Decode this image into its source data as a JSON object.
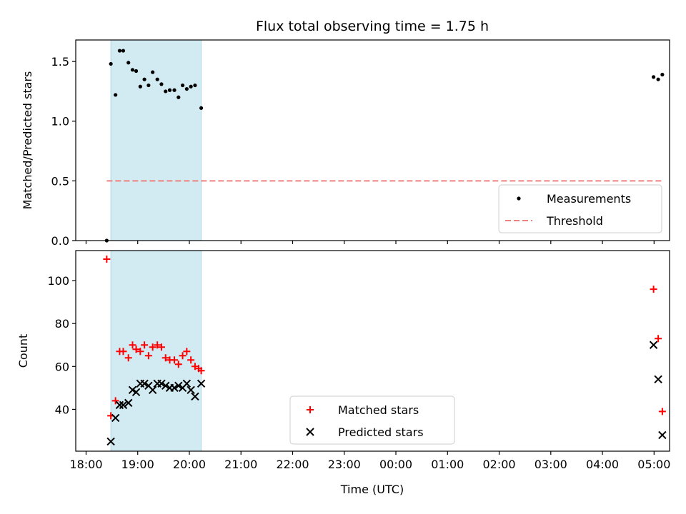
{
  "chart_data": {
    "title": "Flux total observing time = 1.75 h",
    "xlabel": "Time (UTC)",
    "x_unit": "hours after 18:00 UTC",
    "xlim": [
      -0.2,
      11.3
    ],
    "xticks": [
      0,
      1,
      2,
      3,
      4,
      5,
      6,
      7,
      8,
      9,
      10,
      11
    ],
    "xticklabels": [
      "18:00",
      "19:00",
      "20:00",
      "21:00",
      "22:00",
      "23:00",
      "00:00",
      "01:00",
      "02:00",
      "03:00",
      "04:00",
      "05:00"
    ],
    "panels": [
      {
        "type": "scatter",
        "ylabel": "Matched/Predicted stars",
        "ylim": [
          0,
          1.68
        ],
        "yticks": [
          0.0,
          0.5,
          1.0,
          1.5
        ],
        "yticklabels": [
          "0.0",
          "0.5",
          "1.0",
          "1.5"
        ],
        "shaded_span": [
          0.48,
          2.23
        ],
        "shade_color": "#add8e6",
        "series": [
          {
            "name": "Measurements",
            "marker": "dot",
            "color": "#000000",
            "x": [
              0.4,
              0.48,
              0.57,
              0.65,
              0.72,
              0.82,
              0.9,
              0.97,
              1.05,
              1.13,
              1.21,
              1.29,
              1.38,
              1.46,
              1.54,
              1.62,
              1.71,
              1.79,
              1.87,
              1.95,
              2.03,
              2.11,
              2.23,
              10.99,
              11.08,
              11.16
            ],
            "y": [
              0.0,
              1.48,
              1.22,
              1.59,
              1.59,
              1.49,
              1.43,
              1.42,
              1.29,
              1.35,
              1.3,
              1.41,
              1.35,
              1.31,
              1.25,
              1.26,
              1.26,
              1.2,
              1.3,
              1.27,
              1.29,
              1.3,
              1.11,
              1.37,
              1.35,
              1.39
            ]
          },
          {
            "name": "Threshold",
            "marker": "dashed-line",
            "color": "#f08080",
            "x": [
              0.4,
              11.16
            ],
            "y": [
              0.5,
              0.5
            ]
          }
        ],
        "legend": {
          "placement": "lower right",
          "entries": [
            {
              "label": "Measurements",
              "style": "dot",
              "color": "#000000"
            },
            {
              "label": "Threshold",
              "style": "dashed-line",
              "color": "#f08080"
            }
          ]
        }
      },
      {
        "type": "scatter",
        "ylabel": "Count",
        "ylim": [
          20.5,
          114
        ],
        "yticks": [
          40,
          60,
          80,
          100
        ],
        "yticklabels": [
          "40",
          "60",
          "80",
          "100"
        ],
        "shaded_span": [
          0.48,
          2.23
        ],
        "shade_color": "#add8e6",
        "series": [
          {
            "name": "Matched stars",
            "marker": "plus",
            "color": "#ff0000",
            "x": [
              0.4,
              0.48,
              0.57,
              0.65,
              0.72,
              0.82,
              0.9,
              0.97,
              1.05,
              1.13,
              1.21,
              1.29,
              1.38,
              1.46,
              1.54,
              1.62,
              1.71,
              1.79,
              1.87,
              1.95,
              2.03,
              2.11,
              2.18,
              2.23,
              10.99,
              11.08,
              11.16
            ],
            "y": [
              110,
              37,
              44,
              67,
              67,
              64,
              70,
              68,
              67,
              70,
              65,
              69,
              70,
              69,
              64,
              63,
              63,
              61,
              65,
              67,
              63,
              60,
              59,
              58,
              96,
              73,
              39
            ]
          },
          {
            "name": "Predicted stars",
            "marker": "x",
            "color": "#000000",
            "x": [
              0.48,
              0.57,
              0.65,
              0.72,
              0.82,
              0.9,
              0.97,
              1.05,
              1.13,
              1.21,
              1.29,
              1.38,
              1.46,
              1.54,
              1.62,
              1.71,
              1.79,
              1.87,
              1.95,
              2.03,
              2.11,
              2.23,
              10.99,
              11.08,
              11.16
            ],
            "y": [
              25,
              36,
              42,
              42,
              43,
              49,
              48,
              52,
              52,
              51,
              49,
              52,
              52,
              51,
              50,
              50,
              51,
              50,
              52,
              49,
              46,
              52,
              70,
              54,
              28
            ]
          }
        ],
        "legend": {
          "placement": "lower center",
          "entries": [
            {
              "label": "Matched stars",
              "style": "plus",
              "color": "#ff0000"
            },
            {
              "label": "Predicted stars",
              "style": "x",
              "color": "#000000"
            }
          ]
        }
      }
    ]
  }
}
